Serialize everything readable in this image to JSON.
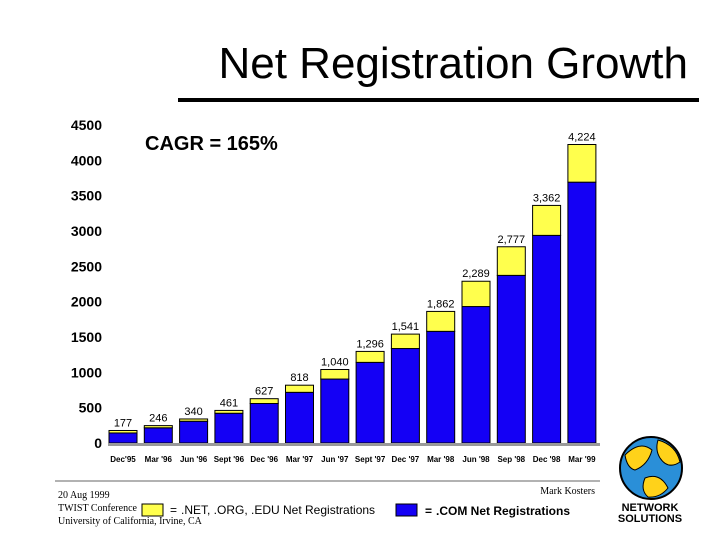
{
  "chart_data": {
    "type": "bar",
    "stacked": true,
    "title": "Net Registration Growth",
    "annotation": "CAGR = 165%",
    "xlabel": "",
    "ylabel": "",
    "ylim": [
      0,
      4500
    ],
    "yticks": [
      "0",
      "500",
      "1000",
      "1500",
      "2000",
      "2500",
      "3000",
      "3500",
      "4000",
      "4500"
    ],
    "categories": [
      "Dec'95",
      "Mar '96",
      "Jun '96",
      "Sept '96",
      "Dec '96",
      "Mar '97",
      "Jun '97",
      "Sept '97",
      "Dec '97",
      "Mar '98",
      "Jun '98",
      "Sep '98",
      "Dec '98",
      "Mar '99"
    ],
    "totals_labels": [
      "177",
      "246",
      "340",
      "461",
      "627",
      "818",
      "1,040",
      "1,296",
      "1,541",
      "1,862",
      "2,289",
      "2,777",
      "3,362",
      "4,224"
    ],
    "series": [
      {
        "name": ".COM Net Registrations",
        "color": "#1400f5",
        "values": [
          142,
          215,
          308,
          421,
          559,
          717,
          905,
          1141,
          1337,
          1580,
          1931,
          2372,
          2938,
          3691
        ]
      },
      {
        "name": ".NET, .ORG, .EDU Net Registrations",
        "color": "#ffff4d",
        "values": [
          35,
          31,
          32,
          40,
          68,
          101,
          135,
          155,
          204,
          282,
          358,
          405,
          424,
          533
        ]
      }
    ],
    "legend": [
      ".NET, .ORG, .EDU Net Registrations",
      ".COM Net Registrations"
    ],
    "legend_placement": "bottom",
    "grid": false
  },
  "footer": {
    "date": "20 Aug 1999",
    "conference": "TWIST Conference",
    "venue": "University of California, Irvine, CA",
    "author": "Mark Kosters"
  },
  "logo": {
    "line1": "NETWORK",
    "line2": "SOLUTIONS"
  }
}
